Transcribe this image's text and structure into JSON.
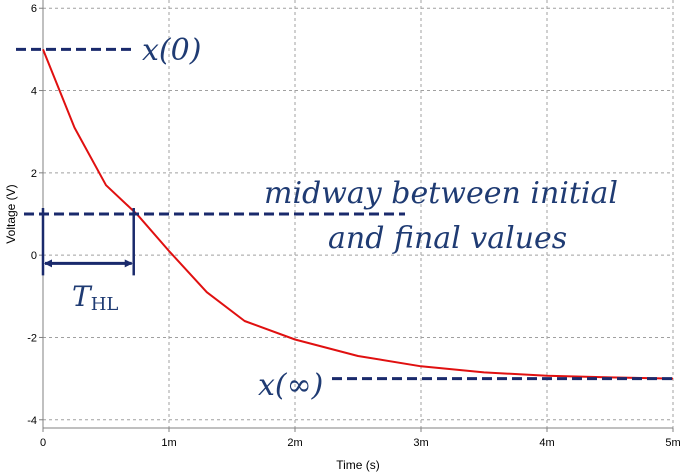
{
  "chart_data": {
    "type": "line",
    "xlabel": "Time (s)",
    "ylabel": "Voltage (V)",
    "xlim": [
      0,
      0.005
    ],
    "ylim": [
      -4.2,
      6.2
    ],
    "x_ticks": [
      {
        "value": 0,
        "label": "0"
      },
      {
        "value": 0.001,
        "label": "1m"
      },
      {
        "value": 0.002,
        "label": "2m"
      },
      {
        "value": 0.003,
        "label": "3m"
      },
      {
        "value": 0.004,
        "label": "4m"
      },
      {
        "value": 0.005,
        "label": "5m"
      }
    ],
    "y_ticks": [
      {
        "value": 6,
        "label": "6"
      },
      {
        "value": 4,
        "label": "4"
      },
      {
        "value": 2,
        "label": "2"
      },
      {
        "value": 0,
        "label": "0"
      },
      {
        "value": -2,
        "label": "-2"
      },
      {
        "value": -4,
        "label": "-4"
      }
    ],
    "grid": true,
    "series": [
      {
        "color": "#e01010",
        "x": [
          0,
          0.00025,
          0.0005,
          0.00075,
          0.001,
          0.0013,
          0.0016,
          0.002,
          0.0025,
          0.003,
          0.0035,
          0.004,
          0.0045,
          0.005
        ],
        "y": [
          5.0,
          3.1,
          1.7,
          0.98,
          0.1,
          -0.9,
          -1.6,
          -2.05,
          -2.45,
          -2.7,
          -2.85,
          -2.93,
          -2.97,
          -3.0
        ]
      }
    ],
    "annotations": {
      "initial": {
        "text": "x(0)",
        "value": 5
      },
      "final": {
        "text": "x(∞)",
        "value": -3
      },
      "midway": {
        "line1": "midway between initial",
        "line2": "and final values",
        "value": 1
      },
      "thl": {
        "text": "T",
        "subscript": "HL",
        "x_start": 0,
        "x_end": 0.00072
      }
    },
    "colors": {
      "curve": "#e01010",
      "annotation": "#1a2a6c",
      "annotation_text": "#1f3b73",
      "grid": "#a0a0a0"
    }
  }
}
